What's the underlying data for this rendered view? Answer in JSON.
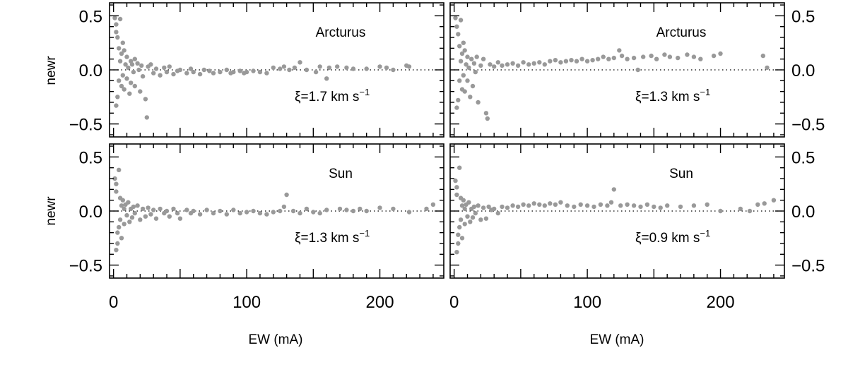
{
  "figure": {
    "x_label": "EW (mA)",
    "y_label": "newr"
  },
  "chart_data": [
    {
      "type": "scatter",
      "panel": "top-left",
      "label": "Arcturus",
      "annotation": {
        "prefix": "ξ=1.7 km s",
        "sup": "−1"
      },
      "xlim": [
        -3,
        248
      ],
      "ylim": [
        -0.62,
        0.62
      ],
      "xticks": [
        0,
        100,
        200
      ],
      "xtick_labels": [
        "0",
        "100",
        "200"
      ],
      "yticks": [
        -0.5,
        0.0,
        0.5
      ],
      "ytick_labels": [
        "−0.5",
        "0.0",
        "0.5"
      ],
      "y_tick_side": "left",
      "show_xtick_labels": false,
      "reference_line": 0,
      "marker_color": "#999999",
      "points": [
        [
          1,
          0.48
        ],
        [
          2,
          0.42
        ],
        [
          2,
          0.35
        ],
        [
          3,
          0.3
        ],
        [
          3,
          -0.25
        ],
        [
          2,
          -0.33
        ],
        [
          5,
          0.47
        ],
        [
          4,
          0.2
        ],
        [
          6,
          0.15
        ],
        [
          5,
          0.08
        ],
        [
          4,
          -0.1
        ],
        [
          6,
          -0.15
        ],
        [
          7,
          0.25
        ],
        [
          8,
          0.18
        ],
        [
          7,
          -0.05
        ],
        [
          9,
          0.05
        ],
        [
          8,
          -0.18
        ],
        [
          10,
          0.12
        ],
        [
          10,
          -0.08
        ],
        [
          11,
          0.02
        ],
        [
          12,
          -0.22
        ],
        [
          13,
          0.08
        ],
        [
          13,
          -0.12
        ],
        [
          14,
          0.05
        ],
        [
          15,
          -0.02
        ],
        [
          16,
          0.1
        ],
        [
          16,
          -0.15
        ],
        [
          18,
          0.06
        ],
        [
          19,
          0.0
        ],
        [
          20,
          -0.2
        ],
        [
          21,
          0.04
        ],
        [
          22,
          -0.06
        ],
        [
          24,
          -0.27
        ],
        [
          25,
          -0.44
        ],
        [
          26,
          0.03
        ],
        [
          28,
          0.05
        ],
        [
          30,
          -0.03
        ],
        [
          32,
          0.01
        ],
        [
          35,
          -0.05
        ],
        [
          38,
          0.02
        ],
        [
          40,
          -0.02
        ],
        [
          42,
          0.03
        ],
        [
          45,
          -0.04
        ],
        [
          48,
          -0.01
        ],
        [
          50,
          0.0
        ],
        [
          55,
          -0.03
        ],
        [
          58,
          0.01
        ],
        [
          60,
          -0.02
        ],
        [
          65,
          -0.04
        ],
        [
          68,
          0.0
        ],
        [
          72,
          -0.01
        ],
        [
          75,
          -0.03
        ],
        [
          80,
          -0.02
        ],
        [
          85,
          0.0
        ],
        [
          88,
          -0.03
        ],
        [
          90,
          -0.02
        ],
        [
          95,
          -0.01
        ],
        [
          98,
          -0.03
        ],
        [
          100,
          -0.02
        ],
        [
          105,
          -0.01
        ],
        [
          110,
          -0.02
        ],
        [
          115,
          -0.03
        ],
        [
          120,
          0.02
        ],
        [
          125,
          0.01
        ],
        [
          128,
          0.03
        ],
        [
          132,
          0.0
        ],
        [
          136,
          0.02
        ],
        [
          140,
          0.07
        ],
        [
          145,
          0.0
        ],
        [
          152,
          -0.02
        ],
        [
          155,
          0.03
        ],
        [
          160,
          -0.08
        ],
        [
          162,
          0.02
        ],
        [
          168,
          0.03
        ],
        [
          175,
          0.02
        ],
        [
          180,
          0.01
        ],
        [
          190,
          0.01
        ],
        [
          200,
          0.03
        ],
        [
          205,
          0.02
        ],
        [
          210,
          0.0
        ],
        [
          220,
          0.04
        ],
        [
          222,
          0.03
        ]
      ]
    },
    {
      "type": "scatter",
      "panel": "top-right",
      "label": "Arcturus",
      "annotation": {
        "prefix": "ξ=1.3 km s",
        "sup": "−1"
      },
      "xlim": [
        -3,
        248
      ],
      "ylim": [
        -0.62,
        0.62
      ],
      "xticks": [
        0,
        100,
        200
      ],
      "xtick_labels": [
        "0",
        "100",
        "200"
      ],
      "yticks": [
        -0.5,
        0.0,
        0.5
      ],
      "ytick_labels": [
        "−0.5",
        "0.0",
        "0.5"
      ],
      "y_tick_side": "right",
      "show_xtick_labels": false,
      "reference_line": 0,
      "marker_color": "#999999",
      "points": [
        [
          1,
          0.48
        ],
        [
          2,
          0.4
        ],
        [
          3,
          0.33
        ],
        [
          3,
          -0.28
        ],
        [
          2,
          -0.35
        ],
        [
          5,
          0.46
        ],
        [
          4,
          0.22
        ],
        [
          6,
          0.15
        ],
        [
          5,
          0.08
        ],
        [
          4,
          -0.1
        ],
        [
          6,
          -0.18
        ],
        [
          7,
          0.25
        ],
        [
          8,
          0.18
        ],
        [
          7,
          -0.05
        ],
        [
          9,
          0.05
        ],
        [
          8,
          -0.2
        ],
        [
          10,
          0.12
        ],
        [
          10,
          -0.1
        ],
        [
          11,
          0.02
        ],
        [
          12,
          -0.25
        ],
        [
          13,
          0.1
        ],
        [
          14,
          -0.15
        ],
        [
          15,
          0.06
        ],
        [
          16,
          -0.02
        ],
        [
          17,
          0.12
        ],
        [
          18,
          -0.3
        ],
        [
          20,
          0.04
        ],
        [
          22,
          0.1
        ],
        [
          24,
          -0.4
        ],
        [
          25,
          -0.45
        ],
        [
          27,
          0.05
        ],
        [
          30,
          0.03
        ],
        [
          33,
          0.07
        ],
        [
          36,
          0.04
        ],
        [
          40,
          0.05
        ],
        [
          44,
          0.06
        ],
        [
          48,
          0.04
        ],
        [
          52,
          0.07
        ],
        [
          56,
          0.05
        ],
        [
          60,
          0.06
        ],
        [
          64,
          0.07
        ],
        [
          68,
          0.05
        ],
        [
          72,
          0.08
        ],
        [
          76,
          0.09
        ],
        [
          80,
          0.07
        ],
        [
          84,
          0.08
        ],
        [
          88,
          0.09
        ],
        [
          92,
          0.08
        ],
        [
          96,
          0.1
        ],
        [
          100,
          0.08
        ],
        [
          104,
          0.09
        ],
        [
          108,
          0.1
        ],
        [
          112,
          0.12
        ],
        [
          116,
          0.1
        ],
        [
          120,
          0.11
        ],
        [
          124,
          0.18
        ],
        [
          126,
          0.13
        ],
        [
          130,
          0.1
        ],
        [
          135,
          0.11
        ],
        [
          138,
          0.0
        ],
        [
          142,
          0.12
        ],
        [
          148,
          0.13
        ],
        [
          152,
          0.1
        ],
        [
          158,
          0.14
        ],
        [
          162,
          0.12
        ],
        [
          168,
          0.11
        ],
        [
          175,
          0.14
        ],
        [
          180,
          0.12
        ],
        [
          185,
          0.1
        ],
        [
          195,
          0.13
        ],
        [
          200,
          0.15
        ],
        [
          232,
          0.13
        ],
        [
          235,
          0.02
        ]
      ]
    },
    {
      "type": "scatter",
      "panel": "bottom-left",
      "label": "Sun",
      "annotation": {
        "prefix": "ξ=1.3 km s",
        "sup": "−1"
      },
      "xlim": [
        -3,
        248
      ],
      "ylim": [
        -0.62,
        0.62
      ],
      "xticks": [
        0,
        100,
        200
      ],
      "xtick_labels": [
        "0",
        "100",
        "200"
      ],
      "yticks": [
        -0.5,
        0.0,
        0.5
      ],
      "ytick_labels": [
        "−0.5",
        "0.0",
        "0.5"
      ],
      "y_tick_side": "left",
      "show_xtick_labels": true,
      "reference_line": 0,
      "marker_color": "#999999",
      "points": [
        [
          1,
          0.3
        ],
        [
          2,
          0.25
        ],
        [
          2,
          0.18
        ],
        [
          3,
          -0.2
        ],
        [
          3,
          -0.3
        ],
        [
          2,
          -0.36
        ],
        [
          4,
          0.38
        ],
        [
          5,
          0.12
        ],
        [
          6,
          0.05
        ],
        [
          5,
          -0.08
        ],
        [
          4,
          -0.15
        ],
        [
          6,
          -0.25
        ],
        [
          7,
          0.1
        ],
        [
          8,
          0.02
        ],
        [
          8,
          -0.12
        ],
        [
          9,
          0.06
        ],
        [
          10,
          -0.04
        ],
        [
          11,
          0.08
        ],
        [
          12,
          -0.1
        ],
        [
          13,
          0.02
        ],
        [
          14,
          -0.06
        ],
        [
          15,
          0.04
        ],
        [
          16,
          -0.02
        ],
        [
          18,
          0.05
        ],
        [
          20,
          -0.08
        ],
        [
          22,
          0.02
        ],
        [
          24,
          -0.05
        ],
        [
          26,
          0.03
        ],
        [
          28,
          -0.03
        ],
        [
          30,
          0.01
        ],
        [
          32,
          -0.07
        ],
        [
          35,
          0.02
        ],
        [
          38,
          -0.02
        ],
        [
          40,
          0.0
        ],
        [
          42,
          -0.05
        ],
        [
          45,
          0.02
        ],
        [
          48,
          -0.02
        ],
        [
          50,
          -0.07
        ],
        [
          55,
          0.01
        ],
        [
          58,
          -0.02
        ],
        [
          60,
          0.0
        ],
        [
          65,
          -0.03
        ],
        [
          70,
          0.01
        ],
        [
          75,
          -0.02
        ],
        [
          80,
          0.0
        ],
        [
          85,
          -0.03
        ],
        [
          90,
          0.01
        ],
        [
          95,
          -0.02
        ],
        [
          100,
          -0.01
        ],
        [
          105,
          0.0
        ],
        [
          110,
          -0.02
        ],
        [
          115,
          -0.03
        ],
        [
          120,
          -0.01
        ],
        [
          125,
          0.0
        ],
        [
          128,
          0.04
        ],
        [
          130,
          0.15
        ],
        [
          135,
          0.0
        ],
        [
          140,
          -0.02
        ],
        [
          145,
          0.02
        ],
        [
          150,
          -0.01
        ],
        [
          155,
          -0.02
        ],
        [
          160,
          0.01
        ],
        [
          170,
          0.02
        ],
        [
          175,
          0.01
        ],
        [
          180,
          0.0
        ],
        [
          185,
          0.02
        ],
        [
          190,
          0.0
        ],
        [
          200,
          0.03
        ],
        [
          210,
          0.02
        ],
        [
          222,
          -0.01
        ],
        [
          235,
          0.02
        ],
        [
          240,
          0.06
        ]
      ]
    },
    {
      "type": "scatter",
      "panel": "bottom-right",
      "label": "Sun",
      "annotation": {
        "prefix": "ξ=0.9 km s",
        "sup": "−1"
      },
      "xlim": [
        -3,
        248
      ],
      "ylim": [
        -0.62,
        0.62
      ],
      "xticks": [
        0,
        100,
        200
      ],
      "xtick_labels": [
        "0",
        "100",
        "200"
      ],
      "yticks": [
        -0.5,
        0.0,
        0.5
      ],
      "ytick_labels": [
        "−0.5",
        "0.0",
        "0.5"
      ],
      "y_tick_side": "right",
      "show_xtick_labels": true,
      "reference_line": 0,
      "marker_color": "#999999",
      "points": [
        [
          1,
          0.28
        ],
        [
          2,
          0.22
        ],
        [
          2,
          0.15
        ],
        [
          3,
          -0.22
        ],
        [
          3,
          -0.3
        ],
        [
          2,
          -0.38
        ],
        [
          4,
          0.4
        ],
        [
          5,
          0.12
        ],
        [
          6,
          0.05
        ],
        [
          5,
          -0.08
        ],
        [
          4,
          -0.15
        ],
        [
          6,
          -0.25
        ],
        [
          7,
          0.1
        ],
        [
          8,
          0.02
        ],
        [
          8,
          -0.12
        ],
        [
          9,
          0.06
        ],
        [
          10,
          -0.05
        ],
        [
          11,
          0.08
        ],
        [
          12,
          -0.1
        ],
        [
          13,
          0.02
        ],
        [
          14,
          -0.06
        ],
        [
          15,
          0.04
        ],
        [
          16,
          -0.02
        ],
        [
          18,
          0.05
        ],
        [
          20,
          -0.08
        ],
        [
          22,
          0.03
        ],
        [
          24,
          -0.07
        ],
        [
          26,
          0.04
        ],
        [
          28,
          0.01
        ],
        [
          30,
          0.02
        ],
        [
          33,
          -0.02
        ],
        [
          36,
          0.04
        ],
        [
          40,
          0.03
        ],
        [
          44,
          0.05
        ],
        [
          48,
          0.04
        ],
        [
          52,
          0.06
        ],
        [
          56,
          0.05
        ],
        [
          60,
          0.07
        ],
        [
          64,
          0.06
        ],
        [
          68,
          0.05
        ],
        [
          72,
          0.07
        ],
        [
          76,
          0.06
        ],
        [
          80,
          0.08
        ],
        [
          85,
          0.05
        ],
        [
          90,
          0.04
        ],
        [
          95,
          0.06
        ],
        [
          100,
          0.05
        ],
        [
          105,
          0.04
        ],
        [
          110,
          0.06
        ],
        [
          115,
          0.05
        ],
        [
          118,
          0.08
        ],
        [
          120,
          0.2
        ],
        [
          125,
          0.05
        ],
        [
          130,
          0.06
        ],
        [
          135,
          0.05
        ],
        [
          140,
          0.04
        ],
        [
          145,
          0.06
        ],
        [
          150,
          0.04
        ],
        [
          155,
          0.03
        ],
        [
          160,
          0.05
        ],
        [
          170,
          0.04
        ],
        [
          180,
          0.05
        ],
        [
          190,
          0.06
        ],
        [
          200,
          0.0
        ],
        [
          215,
          0.02
        ],
        [
          222,
          0.0
        ],
        [
          228,
          0.06
        ],
        [
          233,
          0.07
        ],
        [
          240,
          0.1
        ]
      ]
    }
  ]
}
